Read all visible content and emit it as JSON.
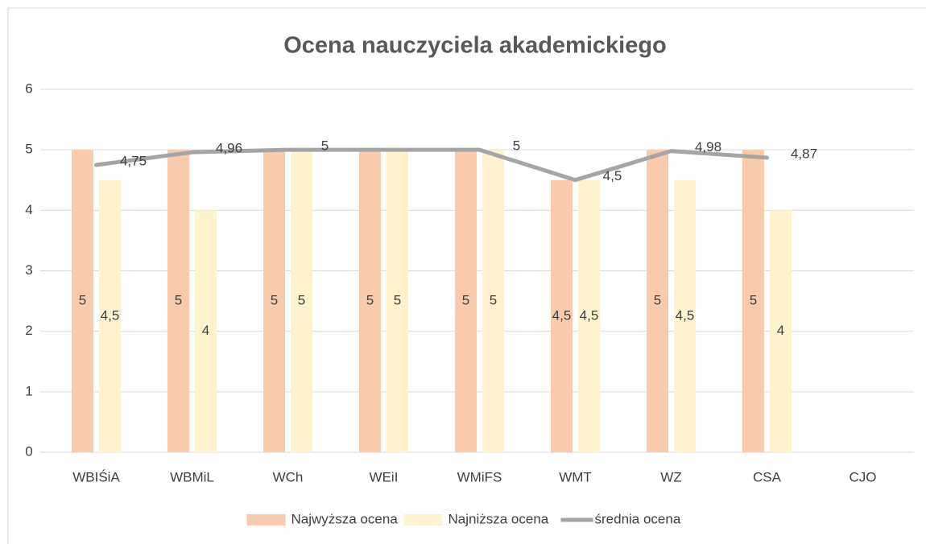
{
  "chart_data": {
    "type": "bar+line",
    "title": "Ocena nauczyciela akademickiego",
    "categories": [
      "WBIŚiA",
      "WBMiL",
      "WCh",
      "WEiI",
      "WMiFS",
      "WMT",
      "WZ",
      "CSA",
      "CJO"
    ],
    "series": [
      {
        "name": "Najwyższa ocena",
        "type": "bar",
        "color": "#f8cbad",
        "values": [
          5,
          5,
          5,
          5,
          5,
          4.5,
          5,
          5,
          null
        ],
        "value_labels": [
          "5",
          "5",
          "5",
          "5",
          "5",
          "4,5",
          "5",
          "5",
          null
        ]
      },
      {
        "name": "Najniższa ocena",
        "type": "bar",
        "color": "#fff2cc",
        "values": [
          4.5,
          4,
          5,
          5,
          5,
          4.5,
          4.5,
          4,
          null
        ],
        "value_labels": [
          "4,5",
          "4",
          "5",
          "5",
          "5",
          "4,5",
          "4,5",
          "4",
          null
        ]
      },
      {
        "name": "średnia ocena",
        "type": "line",
        "color": "#a5a5a5",
        "values": [
          4.75,
          4.96,
          5,
          5,
          5,
          4.5,
          4.98,
          4.87,
          null
        ],
        "value_labels": [
          "4,75",
          "4,96",
          "5",
          null,
          "5",
          "4,5",
          "4,98",
          "4,87",
          null
        ]
      }
    ],
    "ylim": [
      0,
      6
    ],
    "yticks": [
      0,
      1,
      2,
      3,
      4,
      5,
      6
    ],
    "grid": true,
    "legend": "bottom"
  }
}
